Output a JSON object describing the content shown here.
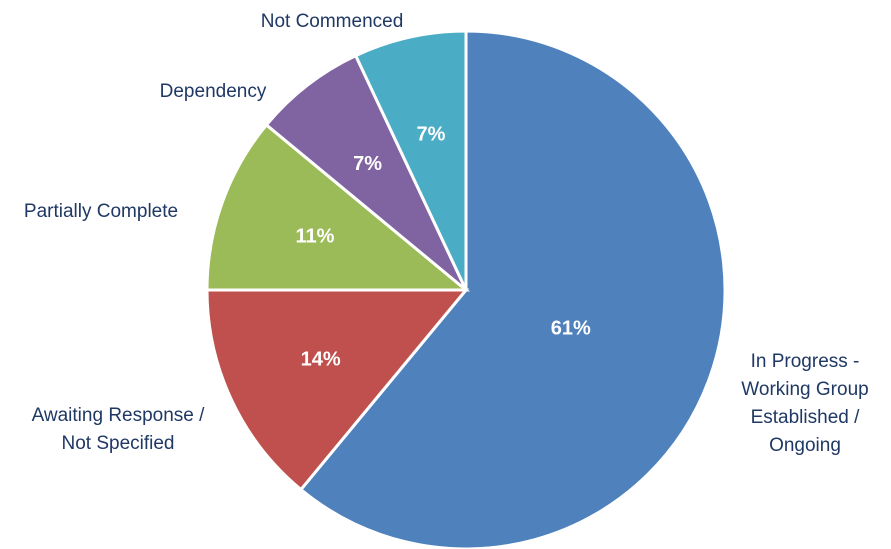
{
  "chart_data": {
    "type": "pie",
    "title": "",
    "start_angle_deg": 0,
    "direction": "clockwise",
    "slices": [
      {
        "label": "In Progress - Working Group Established / Ongoing",
        "label_lines": [
          "In Progress -",
          "Working Group",
          "Established /",
          "Ongoing"
        ],
        "value": 61,
        "display": "61%",
        "color": "#4f81bd"
      },
      {
        "label": "Awaiting Response / Not Specified",
        "label_lines": [
          "Awaiting Response /",
          "Not Specified"
        ],
        "value": 14,
        "display": "14%",
        "color": "#c0504d"
      },
      {
        "label": "Partially Complete",
        "label_lines": [
          "Partially Complete"
        ],
        "value": 11,
        "display": "11%",
        "color": "#9bbb59"
      },
      {
        "label": "Dependency",
        "label_lines": [
          "Dependency"
        ],
        "value": 7,
        "display": "7%",
        "color": "#8064a2"
      },
      {
        "label": "Not Commenced",
        "label_lines": [
          "Not Commenced"
        ],
        "value": 7,
        "display": "7%",
        "color": "#4bacc6"
      }
    ],
    "legend": "none"
  }
}
